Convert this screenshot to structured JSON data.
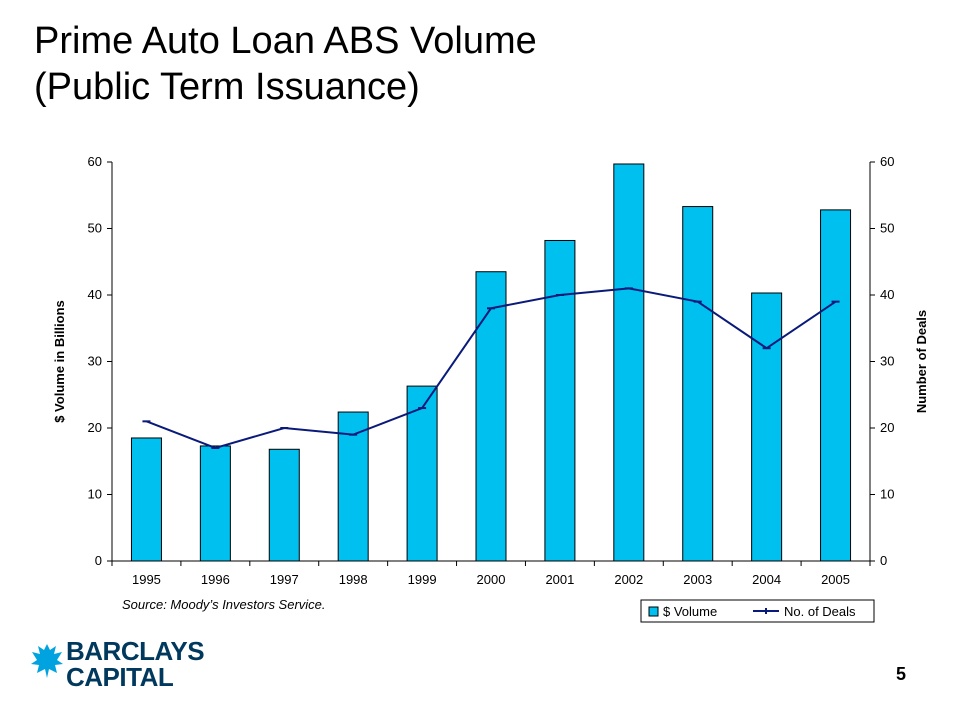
{
  "slide": {
    "title_line1": "Prime Auto Loan ABS Volume",
    "title_line2": "(Public Term Issuance)",
    "source": "Source: Moody’s Investors Service.",
    "page_number": "5",
    "logo": {
      "line1": "BARCLAYS",
      "line2": "CAPITAL",
      "color": "#00395d"
    }
  },
  "chart_data": {
    "type": "bar",
    "categories": [
      "1995",
      "1996",
      "1997",
      "1998",
      "1999",
      "2000",
      "2001",
      "2002",
      "2003",
      "2004",
      "2005"
    ],
    "series": [
      {
        "name": "$ Volume",
        "type": "bar",
        "axis": "left",
        "color": "#00c0f0",
        "values": [
          18.5,
          17.3,
          16.8,
          22.4,
          26.3,
          43.5,
          48.2,
          59.7,
          53.3,
          40.3,
          52.8
        ]
      },
      {
        "name": "No. of Deals",
        "type": "line",
        "axis": "right",
        "color": "#0a1a7a",
        "values": [
          21,
          17,
          20,
          19,
          23,
          38,
          40,
          41,
          39,
          32,
          39
        ]
      }
    ],
    "ylabel": "$ Volume in Billions",
    "y2label": "Number of Deals",
    "ylim": [
      0,
      60
    ],
    "y2lim": [
      0,
      60
    ],
    "yticks": [
      0,
      10,
      20,
      30,
      40,
      50,
      60
    ],
    "grid": false,
    "legend_position": "bottom-right"
  }
}
